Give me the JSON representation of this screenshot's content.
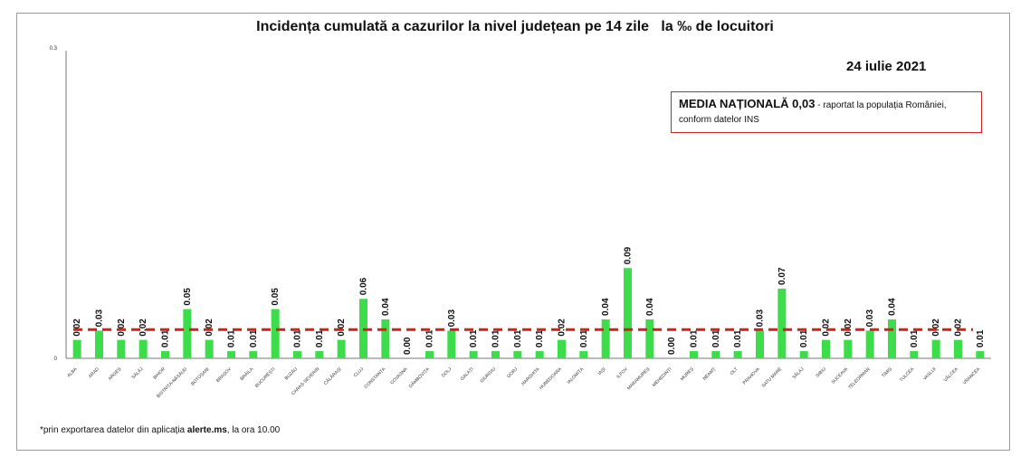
{
  "title": "Incidența cumulată a cazurilor la nivel județean pe 14 zile   la ‰ de locuitori",
  "date": "24 iulie 2021",
  "media_box": {
    "label": "MEDIA NAȚIONALĂ 0,03",
    "note_a": " - raportat la populația României,",
    "note_b": "conform datelor INS"
  },
  "footnote": {
    "prefix": "*prin exportarea datelor din aplicația ",
    "bold": "alerte.ms",
    "suffix": ", la ora 10.00"
  },
  "colors": {
    "bar": "#3ddc4a",
    "average_line": "#d21f1f",
    "box_border": "#d21f1f"
  },
  "chart_data": {
    "type": "bar",
    "categories": [
      "ALBA",
      "ARAD",
      "ARGEȘ",
      "SĂLĂJ",
      "BIHOR",
      "BISTRIȚA-NĂSĂUD",
      "BOTOȘANI",
      "BRAȘOV",
      "BRĂILA",
      "BUCUREȘTI",
      "BUZĂU",
      "CARAȘ-SEVERIN",
      "CĂLĂRAȘI",
      "CLUJ",
      "CONSTANȚA",
      "COVASNA",
      "DÂMBOVIȚA",
      "DOLJ",
      "GALAȚI",
      "GIURGIU",
      "GORJ",
      "HARGHITA",
      "HUNEDOARA",
      "IALOMIȚA",
      "IAȘI",
      "ILFOV",
      "MARAMUREȘ",
      "MEHEDINȚI",
      "MUREȘ",
      "NEAMȚ",
      "OLT",
      "PRAHOVA",
      "SATU MARE",
      "SĂLAJ",
      "SIBIU",
      "SUCEAVA",
      "TELEORMAN",
      "TIMIȘ",
      "TULCEA",
      "VASLUI",
      "VÂLCEA",
      "VRANCEA"
    ],
    "values": [
      0.018,
      0.027,
      0.018,
      0.018,
      0.007,
      0.048,
      0.018,
      0.007,
      0.007,
      0.048,
      0.007,
      0.007,
      0.018,
      0.058,
      0.038,
      0.0,
      0.007,
      0.027,
      0.007,
      0.007,
      0.007,
      0.007,
      0.018,
      0.007,
      0.038,
      0.088,
      0.038,
      0.0,
      0.007,
      0.007,
      0.007,
      0.027,
      0.068,
      0.007,
      0.018,
      0.018,
      0.027,
      0.038,
      0.007,
      0.018,
      0.018,
      0.007
    ],
    "labels": [
      "0.02",
      "0.03",
      "0.02",
      "0.02",
      "0.01",
      "0.05",
      "0.02",
      "0.01",
      "0.01",
      "0.05",
      "0.01",
      "0.01",
      "0.02",
      "0.06",
      "0.04",
      "0.00",
      "0.01",
      "0.03",
      "0.01",
      "0.01",
      "0.01",
      "0.01",
      "0.02",
      "0.01",
      "0.04",
      "0.09",
      "0.04",
      "0.00",
      "0.01",
      "0.01",
      "0.01",
      "0.03",
      "0.07",
      "0.01",
      "0.02",
      "0.02",
      "0.03",
      "0.04",
      "0.01",
      "0.02",
      "0.02",
      "0.01"
    ],
    "average": 0.028,
    "average_label": "0,03",
    "ylim": [
      0,
      0.3
    ],
    "yticks": [
      "0",
      "0.3"
    ],
    "xlabel": "",
    "ylabel": "",
    "grid": false,
    "legend": "none"
  }
}
